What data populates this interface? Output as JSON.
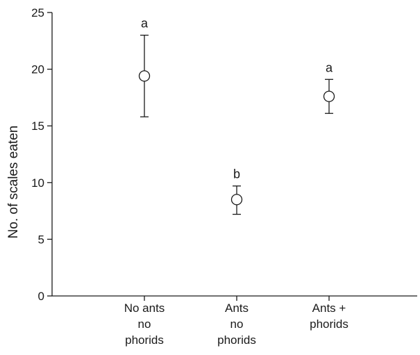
{
  "chart_data": {
    "type": "scatter",
    "title": "",
    "xlabel": "",
    "ylabel": "No. of scales eaten",
    "ylim": [
      0,
      25
    ],
    "yticks": [
      0,
      5,
      10,
      15,
      20,
      25
    ],
    "grid": false,
    "legend": "none",
    "categories": [
      [
        "No ants",
        "no",
        "phorids"
      ],
      [
        "Ants",
        "no",
        "phorids"
      ],
      [
        "Ants +",
        "phorids"
      ]
    ],
    "series": [
      {
        "values": [
          19.4,
          8.5,
          17.6
        ],
        "error_low": [
          15.8,
          7.2,
          16.1
        ],
        "error_high": [
          23.0,
          9.7,
          19.1
        ],
        "significance": [
          "a",
          "b",
          "a"
        ]
      }
    ],
    "colors": {
      "axis": "#1a1a1a",
      "marker_fill": "#ffffff",
      "marker_stroke": "#1a1a1a"
    }
  }
}
